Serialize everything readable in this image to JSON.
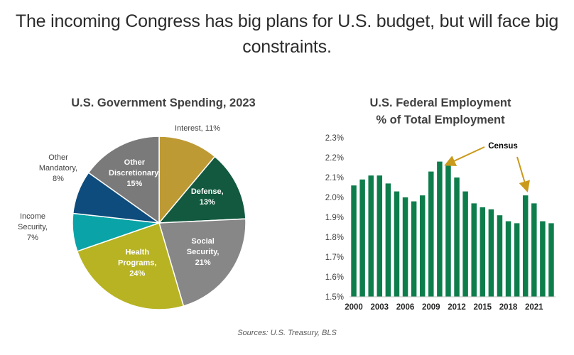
{
  "headline": "The incoming Congress has big plans for U.S. budget, but will face big constraints.",
  "source": "Sources: U.S. Treasury, BLS",
  "colors": {
    "interest": "#BE9A35",
    "defense": "#12593F",
    "social_security": "#878787",
    "health": "#B7B323",
    "income_security": "#0AA4A8",
    "other_mandatory": "#0D4C7C",
    "other_discretionary": "#7A7A7A",
    "bar": "#0E7D4C",
    "arrow": "#C99A1B"
  },
  "chart_data": [
    {
      "type": "pie",
      "title": "U.S. Government Spending,  2023",
      "slices": [
        {
          "label": "Interest,",
          "pct": "11%",
          "value": 11
        },
        {
          "label": "Defense,",
          "pct": "13%",
          "value": 13
        },
        {
          "label": "Social Security,",
          "pct": "21%",
          "value": 21
        },
        {
          "label": "Health Programs,",
          "pct": "24%",
          "value": 24
        },
        {
          "label": "Income Security,",
          "pct": "7%",
          "value": 7
        },
        {
          "label": "Other Mandatory,",
          "pct": "8%",
          "value": 8
        },
        {
          "label": "Other Discretionary,",
          "pct": "15%",
          "value": 15
        }
      ]
    },
    {
      "type": "bar",
      "title_lines": [
        "U.S. Federal Employment",
        "% of Total Employment"
      ],
      "ylim": [
        1.5,
        2.3
      ],
      "yticks": [
        1.5,
        1.6,
        1.7,
        1.8,
        1.9,
        2.0,
        2.1,
        2.2,
        2.3
      ],
      "ytick_labels": [
        "1.5%",
        "1.6%",
        "1.7%",
        "1.8%",
        "1.9%",
        "2.0%",
        "2.1%",
        "2.2%",
        "2.3%"
      ],
      "categories": [
        2000,
        2001,
        2002,
        2003,
        2004,
        2005,
        2006,
        2007,
        2008,
        2009,
        2010,
        2011,
        2012,
        2013,
        2014,
        2015,
        2016,
        2017,
        2018,
        2019,
        2020,
        2021,
        2022,
        2023
      ],
      "xtick_labels": [
        "2000",
        "2003",
        "2006",
        "2009",
        "2012",
        "2015",
        "2018",
        "2021"
      ],
      "values": [
        2.06,
        2.09,
        2.11,
        2.11,
        2.07,
        2.03,
        2.0,
        1.98,
        2.01,
        2.13,
        2.18,
        2.16,
        2.1,
        2.03,
        1.97,
        1.95,
        1.94,
        1.91,
        1.88,
        1.87,
        2.01,
        1.97,
        1.88,
        1.87
      ],
      "annotation": {
        "text": "Census",
        "points_to": [
          2010,
          2020
        ]
      }
    }
  ]
}
